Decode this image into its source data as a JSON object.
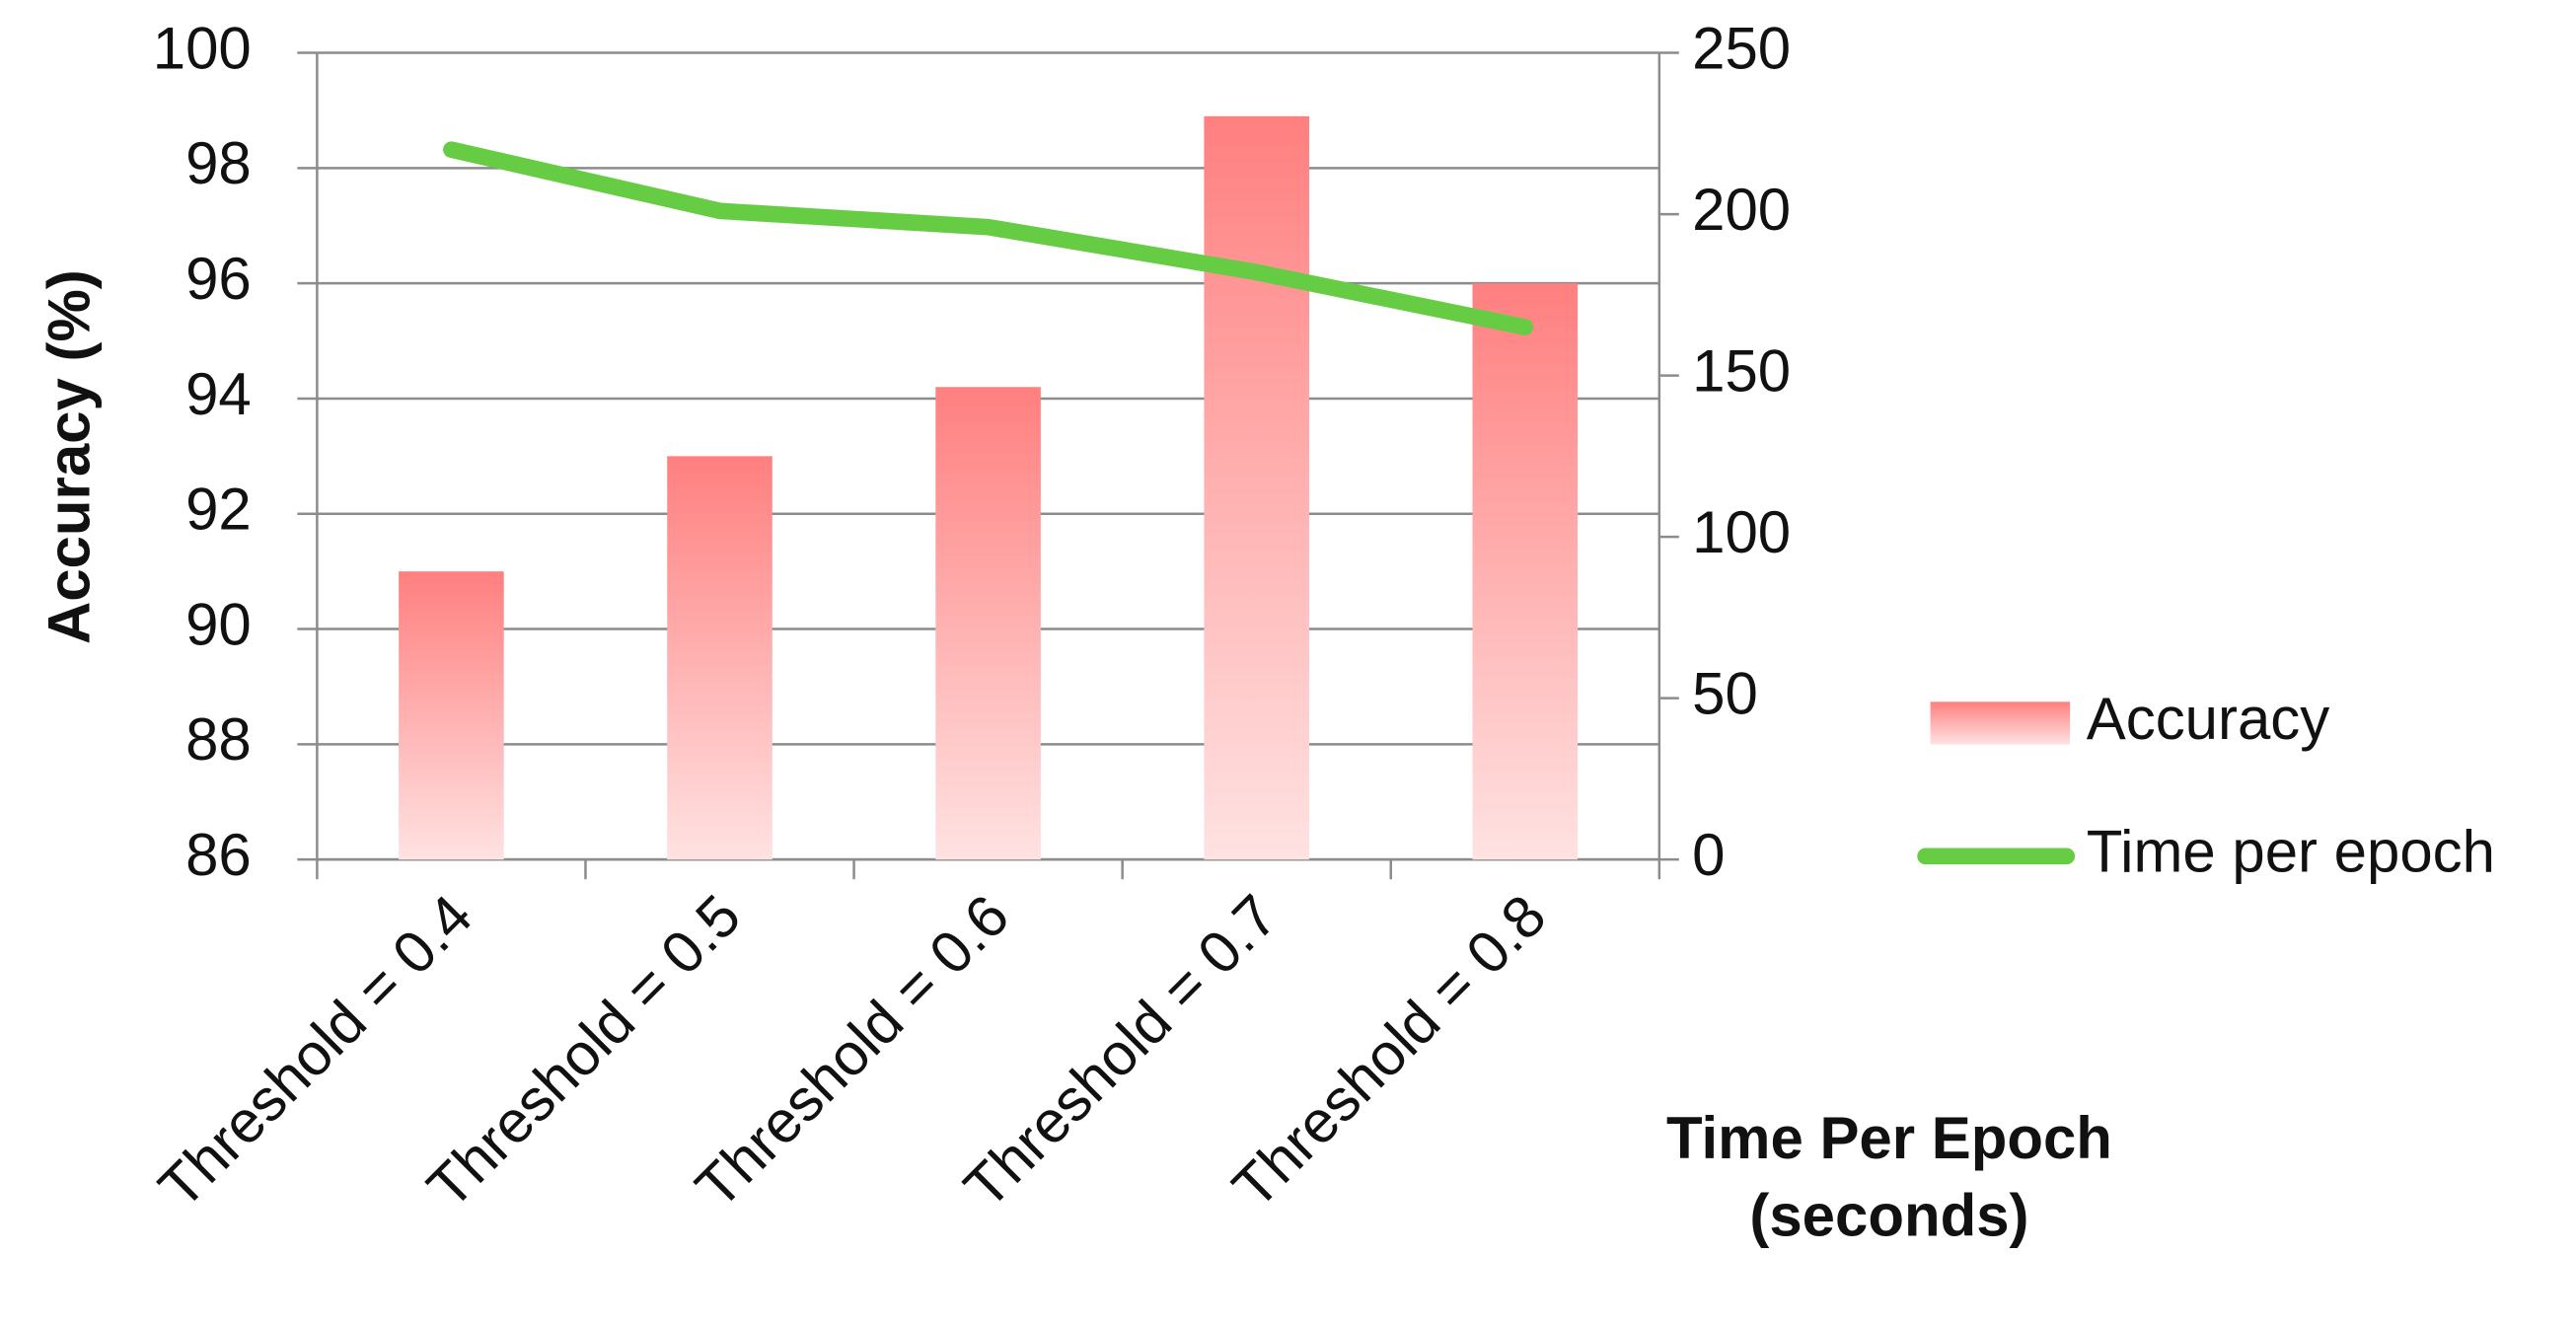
{
  "chart_data": {
    "type": "bar",
    "categories": [
      "Threshold = 0.4",
      "Threshold = 0.5",
      "Threshold = 0.6",
      "Threshold = 0.7",
      "Threshold = 0.8"
    ],
    "series": [
      {
        "name": "Accuracy",
        "type": "bar",
        "color": "#ff7f7f",
        "values": [
          91,
          93,
          94.2,
          98.9,
          96
        ]
      },
      {
        "name": "Time per epoch",
        "type": "line",
        "axis": "y2",
        "color": "#66cc44",
        "values": [
          220,
          201,
          196,
          182,
          165
        ]
      }
    ],
    "ylabel": "Accuracy (%)",
    "y2label": "Time Per Epoch (seconds)",
    "ylim": [
      86,
      100
    ],
    "yticks": [
      86,
      88,
      90,
      92,
      94,
      96,
      98,
      100
    ],
    "y2lim": [
      0,
      250
    ],
    "y2ticks": [
      0,
      50,
      100,
      150,
      200,
      250
    ],
    "grid": true,
    "legend": "right"
  }
}
